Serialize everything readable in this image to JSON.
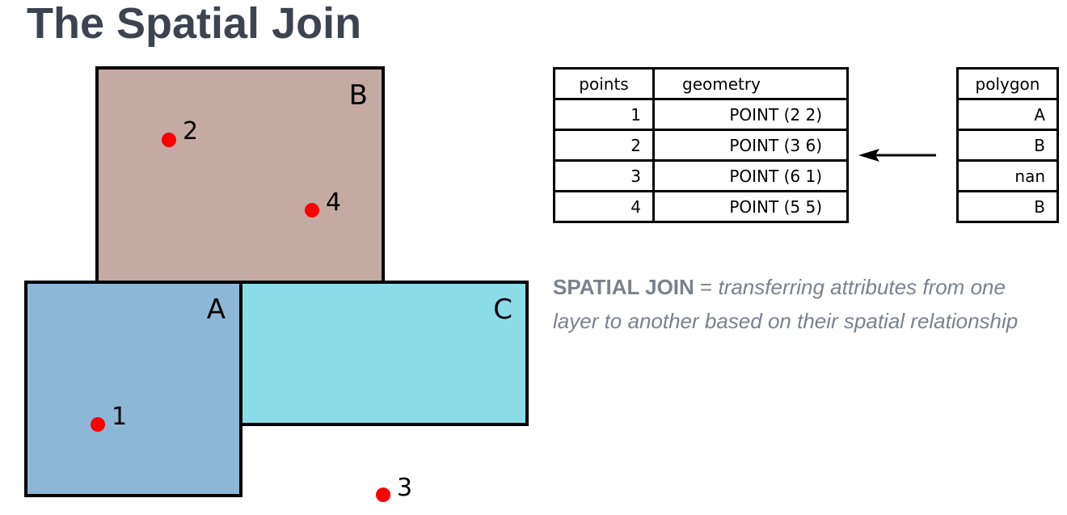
{
  "title": "The Spatial Join",
  "diagram": {
    "polygons": [
      {
        "id": "B",
        "label": "B",
        "fill": "#c4aaa3"
      },
      {
        "id": "A",
        "label": "A",
        "fill": "#8db7d6"
      },
      {
        "id": "C",
        "label": "C",
        "fill": "#8adde8"
      }
    ],
    "points": [
      {
        "id": "2",
        "label": "2",
        "color": "#ff0000"
      },
      {
        "id": "4",
        "label": "4",
        "color": "#ff0000"
      },
      {
        "id": "1",
        "label": "1",
        "color": "#ff0000"
      },
      {
        "id": "3",
        "label": "3",
        "color": "#ff0000"
      }
    ]
  },
  "points_table": {
    "headers": {
      "points": "points",
      "geometry": "geometry"
    },
    "rows": [
      {
        "points": "1",
        "geometry": "POINT (2 2)"
      },
      {
        "points": "2",
        "geometry": "POINT (3 6)"
      },
      {
        "points": "3",
        "geometry": "POINT (6 1)"
      },
      {
        "points": "4",
        "geometry": "POINT (5 5)"
      }
    ]
  },
  "polygon_table": {
    "header": "polygon",
    "rows": [
      "A",
      "B",
      "nan",
      "B"
    ]
  },
  "caption": {
    "term": "SPATIAL JOIN",
    "separator": " = ",
    "definition": "transferring attributes from one layer to another based on their spatial relationship"
  }
}
